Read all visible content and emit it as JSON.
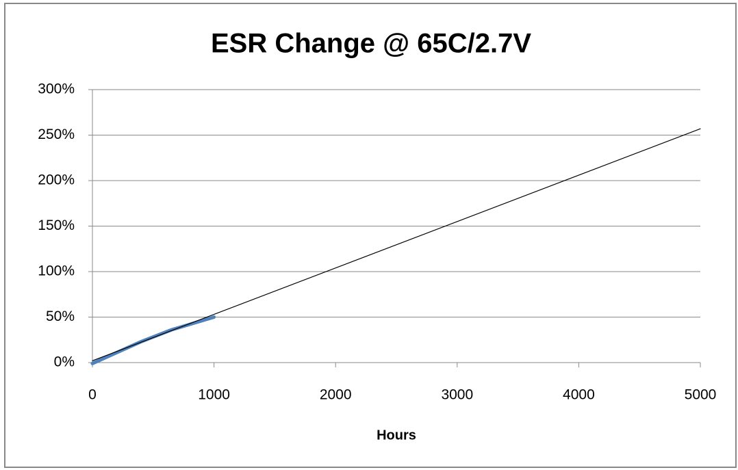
{
  "chart_data": {
    "type": "line",
    "title": "ESR Change @ 65C/2.7V",
    "x_label": "Hours",
    "series": [
      {
        "color": "#4f81bd",
        "width": 5,
        "x": [
          0,
          100,
          200,
          400,
          650,
          1000
        ],
        "values": [
          -1,
          5,
          11,
          23,
          36,
          50
        ]
      },
      {
        "color": "#000000",
        "width": 1.2,
        "x": [
          0,
          5000
        ],
        "values": [
          2,
          257
        ]
      }
    ],
    "xlim": [
      0,
      5000
    ],
    "xticks": [
      0,
      1000,
      2000,
      3000,
      4000,
      5000
    ],
    "ylim": [
      0,
      300
    ],
    "yticks": [
      {
        "value": 0,
        "label": "0%"
      },
      {
        "value": 50,
        "label": "50%"
      },
      {
        "value": 100,
        "label": "100%"
      },
      {
        "value": 150,
        "label": "150%"
      },
      {
        "value": 200,
        "label": "200%"
      },
      {
        "value": 250,
        "label": "250%"
      },
      {
        "value": 300,
        "label": "300%"
      }
    ],
    "grid": true
  }
}
